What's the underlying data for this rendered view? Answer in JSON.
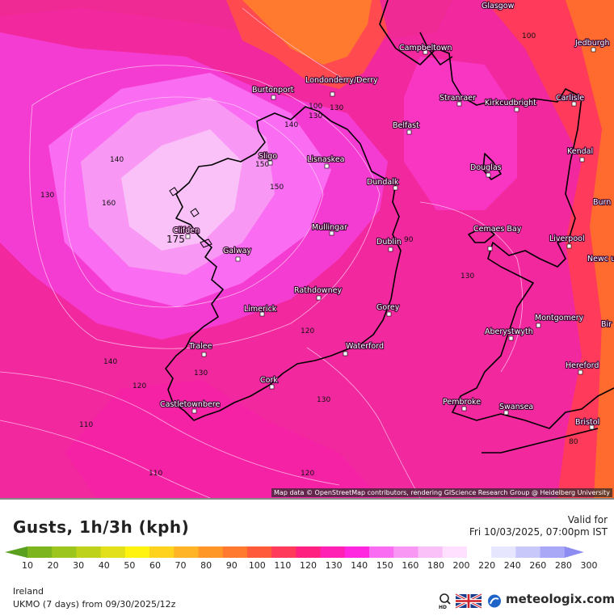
{
  "map": {
    "cities": [
      "Glasgow",
      "Jedburgh",
      "Campbeltown",
      "Burtonport",
      "Londonderry/Derry",
      "Stranraer",
      "Kirkcudbright",
      "Carlisle",
      "Belfast",
      "Sligo",
      "Lisnaskea",
      "Kendal",
      "Douglas",
      "Dundalk",
      "Mullingar",
      "Dublin",
      "Cemaes Bay",
      "Liverpool",
      "Galway",
      "Clifden",
      "Rathdowney",
      "Limerick",
      "Gorey",
      "Montgomery",
      "Aberystwyth",
      "Tralee",
      "Waterford",
      "Hereford",
      "Cork",
      "Pembroke",
      "Swansea",
      "Castletownbere",
      "Bristol",
      "Burn",
      "Newc undl Lym",
      "Bir"
    ],
    "contour_labels": [
      "100",
      "130",
      "140",
      "150",
      "140",
      "160",
      "130",
      "175",
      "150",
      "140",
      "130",
      "120",
      "130",
      "130",
      "120",
      "110",
      "120",
      "130",
      "110",
      "120",
      "100",
      "90",
      "80"
    ],
    "attribution": "Map data © OpenStreetMap contributors, rendering GIScience Research Group @ Heidelberg University"
  },
  "header": {
    "title": "Gusts, 1h/3h (kph)",
    "valid_label": "Valid for",
    "valid_time": "Fri 10/03/2025, 07:00pm IST"
  },
  "legend": {
    "ticks": [
      "10",
      "20",
      "30",
      "40",
      "50",
      "60",
      "70",
      "80",
      "90",
      "100",
      "110",
      "120",
      "130",
      "140",
      "150",
      "160",
      "180",
      "200",
      "220",
      "240",
      "260",
      "280",
      "300"
    ],
    "colors": [
      "#5aa01e",
      "#7cb51e",
      "#9cc61e",
      "#bed21c",
      "#e2e01a",
      "#fff30f",
      "#ffd21e",
      "#ffb428",
      "#ff9628",
      "#ff7a2e",
      "#ff5a3a",
      "#ff3a5a",
      "#ff2080",
      "#ff20b4",
      "#ff28e0",
      "#fa6cf2",
      "#f898f4",
      "#fac0f8",
      "#ffe0ff",
      "#ffffff",
      "#e6e6ff",
      "#c8c8fa",
      "#a8a8f6",
      "#8c8cf2"
    ]
  },
  "footer": {
    "region": "Ireland",
    "model": "UKMO (7 days) from 09/30/2025/12z",
    "brand": "meteologix.com",
    "hd": "HD"
  }
}
